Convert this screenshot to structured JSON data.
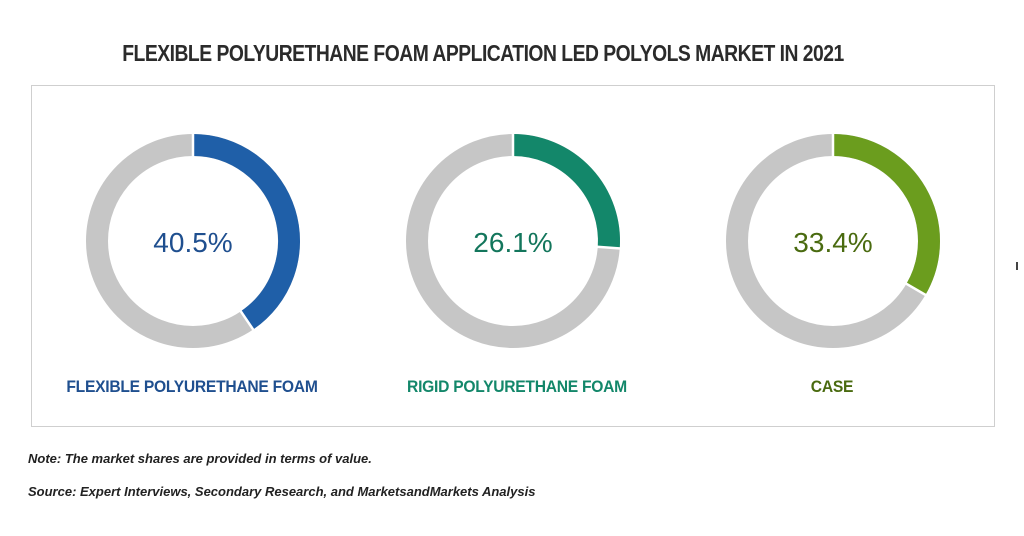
{
  "chart_data": {
    "type": "pie",
    "title": "FLEXIBLE POLYURETHANE FOAM APPLICATION LED POLYOLS MARKET IN 2021",
    "series": [
      {
        "name": "FLEXIBLE POLYURETHANE FOAM",
        "value": 40.5,
        "label": "40.5%",
        "color": "#1f5fa8"
      },
      {
        "name": "RIGID POLYURETHANE FOAM",
        "value": 26.1,
        "label": "26.1%",
        "color": "#13876a"
      },
      {
        "name": "CASE",
        "value": 33.4,
        "label": "33.4%",
        "color": "#6b9d1e"
      }
    ],
    "remainder_color": "#c6c6c6"
  },
  "footnotes": {
    "note": "Note: The market shares are provided in terms of value.",
    "source": "Source: Expert Interviews, Secondary Research, and MarketsandMarkets Analysis"
  }
}
